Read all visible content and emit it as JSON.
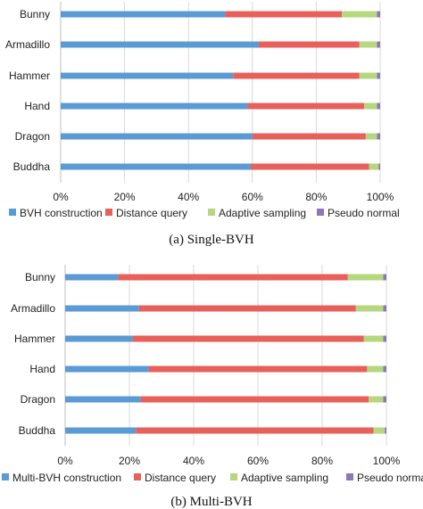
{
  "chart_data": [
    {
      "type": "bar",
      "orientation": "horizontal",
      "stacked": "percent",
      "caption": "(a) Single-BVH",
      "categories": [
        "Bunny",
        "Armadillo",
        "Hammer",
        "Hand",
        "Dragon",
        "Buddha"
      ],
      "series": [
        {
          "name": "BVH construction",
          "color": "#5b9bd5",
          "values": [
            51.5,
            62.0,
            54.0,
            58.5,
            60.0,
            59.5
          ]
        },
        {
          "name": "Distance query",
          "color": "#e8605a",
          "values": [
            36.5,
            31.5,
            39.5,
            36.5,
            35.5,
            37.0
          ]
        },
        {
          "name": "Adaptive sampling",
          "color": "#b5d77e",
          "values": [
            11.0,
            5.5,
            5.5,
            4.0,
            3.5,
            3.0
          ]
        },
        {
          "name": "Pseudo normal",
          "color": "#8d78b7",
          "values": [
            1.0,
            1.0,
            1.0,
            1.0,
            1.0,
            0.5
          ]
        }
      ],
      "x_ticks": [
        "0%",
        "20%",
        "40%",
        "60%",
        "80%",
        "100%"
      ],
      "xlim": [
        0,
        100
      ],
      "legend_position": "bottom",
      "grid": "vertical"
    },
    {
      "type": "bar",
      "orientation": "horizontal",
      "stacked": "percent",
      "caption": "(b) Multi-BVH",
      "categories": [
        "Bunny",
        "Armadillo",
        "Hammer",
        "Hand",
        "Dragon",
        "Buddha"
      ],
      "series": [
        {
          "name": "Multi-BVH construction",
          "color": "#5b9bd5",
          "values": [
            16.5,
            23.0,
            21.0,
            26.0,
            23.5,
            22.0
          ]
        },
        {
          "name": "Distance query",
          "color": "#e8605a",
          "values": [
            71.5,
            67.5,
            72.0,
            68.0,
            71.0,
            74.0
          ]
        },
        {
          "name": "Adaptive sampling",
          "color": "#b5d77e",
          "values": [
            11.0,
            8.5,
            6.0,
            5.0,
            4.5,
            3.5
          ]
        },
        {
          "name": "Pseudo normal",
          "color": "#8d78b7",
          "values": [
            1.0,
            1.0,
            1.0,
            1.0,
            1.0,
            0.5
          ]
        }
      ],
      "x_ticks": [
        "0%",
        "20%",
        "40%",
        "60%",
        "80%",
        "100%"
      ],
      "xlim": [
        0,
        100
      ],
      "legend_position": "bottom",
      "grid": "vertical"
    }
  ]
}
